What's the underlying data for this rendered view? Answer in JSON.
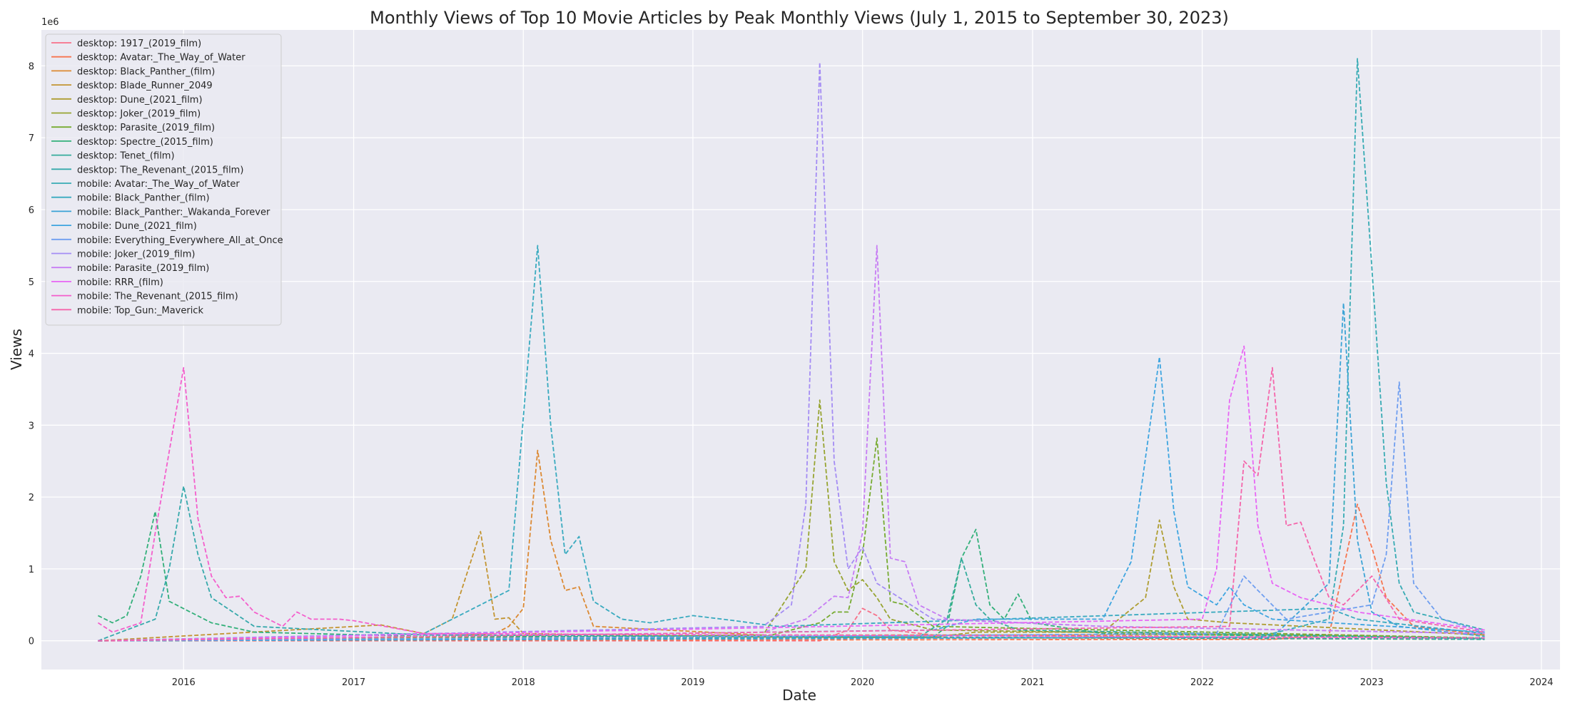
{
  "chart_data": {
    "type": "line",
    "title": "Monthly Views of Top 10 Movie Articles by Peak Monthly Views (July 1, 2015 to September 30, 2023)",
    "xlabel": "Date",
    "ylabel": "Views",
    "y_offset_text": "1e6",
    "x_range": [
      "2015-03-01",
      "2024-02-10"
    ],
    "y_range": [
      -0.4,
      8.5
    ],
    "x_ticks": [
      "2016",
      "2017",
      "2018",
      "2019",
      "2020",
      "2021",
      "2022",
      "2023",
      "2024"
    ],
    "y_ticks": [
      "0",
      "1",
      "2",
      "3",
      "4",
      "5",
      "6",
      "7",
      "8"
    ],
    "grid": true,
    "legend_position": "upper-left",
    "line_style": "dashed",
    "series": [
      {
        "name": "desktop: 1917_(2019_film)",
        "color": "#f77189",
        "points": [
          [
            "2015-07-01",
            0
          ],
          [
            "2019-10-01",
            0
          ],
          [
            "2019-12-01",
            0.15
          ],
          [
            "2020-01-01",
            0.45
          ],
          [
            "2020-02-01",
            0.35
          ],
          [
            "2020-03-01",
            0.15
          ],
          [
            "2020-06-01",
            0.08
          ],
          [
            "2023-09-01",
            0.02
          ]
        ]
      },
      {
        "name": "desktop: Avatar:_The_Way_of_Water",
        "color": "#f7754f",
        "points": [
          [
            "2015-07-01",
            0
          ],
          [
            "2022-06-01",
            0.02
          ],
          [
            "2022-10-01",
            0.08
          ],
          [
            "2022-12-01",
            1.9
          ],
          [
            "2023-01-01",
            1.3
          ],
          [
            "2023-02-01",
            0.6
          ],
          [
            "2023-04-01",
            0.2
          ],
          [
            "2023-09-01",
            0.08
          ]
        ]
      },
      {
        "name": "desktop: Black_Panther_(film)",
        "color": "#dc8932",
        "points": [
          [
            "2015-07-01",
            0
          ],
          [
            "2017-06-01",
            0.05
          ],
          [
            "2017-11-01",
            0.1
          ],
          [
            "2017-12-01",
            0.2
          ],
          [
            "2018-01-01",
            0.45
          ],
          [
            "2018-02-01",
            2.65
          ],
          [
            "2018-03-01",
            1.4
          ],
          [
            "2018-04-01",
            0.7
          ],
          [
            "2018-05-01",
            0.75
          ],
          [
            "2018-06-01",
            0.2
          ],
          [
            "2019-06-01",
            0.08
          ],
          [
            "2022-11-01",
            0.08
          ],
          [
            "2023-09-01",
            0.03
          ]
        ]
      },
      {
        "name": "desktop: Blade_Runner_2049",
        "color": "#c39532",
        "points": [
          [
            "2015-07-01",
            0
          ],
          [
            "2017-03-01",
            0.22
          ],
          [
            "2017-06-01",
            0.1
          ],
          [
            "2017-08-01",
            0.3
          ],
          [
            "2017-10-01",
            1.52
          ],
          [
            "2017-11-01",
            0.3
          ],
          [
            "2017-12-01",
            0.32
          ],
          [
            "2018-01-01",
            0.1
          ],
          [
            "2019-06-01",
            0.05
          ],
          [
            "2023-09-01",
            0.02
          ]
        ]
      },
      {
        "name": "desktop: Dune_(2021_film)",
        "color": "#ae9d31",
        "points": [
          [
            "2015-07-01",
            0
          ],
          [
            "2020-06-01",
            0.05
          ],
          [
            "2020-09-01",
            0.12
          ],
          [
            "2021-06-01",
            0.12
          ],
          [
            "2021-09-01",
            0.6
          ],
          [
            "2021-10-01",
            1.68
          ],
          [
            "2021-11-01",
            0.75
          ],
          [
            "2021-12-01",
            0.3
          ],
          [
            "2022-03-01",
            0.25
          ],
          [
            "2023-09-01",
            0.08
          ]
        ]
      },
      {
        "name": "desktop: Joker_(2019_film)",
        "color": "#97a431",
        "points": [
          [
            "2015-07-01",
            0
          ],
          [
            "2019-06-01",
            0.08
          ],
          [
            "2019-09-01",
            1
          ],
          [
            "2019-10-01",
            3.35
          ],
          [
            "2019-11-01",
            1.1
          ],
          [
            "2019-12-01",
            0.7
          ],
          [
            "2020-01-01",
            0.85
          ],
          [
            "2020-02-01",
            0.6
          ],
          [
            "2020-03-01",
            0.3
          ],
          [
            "2020-06-01",
            0.15
          ],
          [
            "2023-09-01",
            0.04
          ]
        ]
      },
      {
        "name": "desktop: Parasite_(2019_film)",
        "color": "#77ab31",
        "points": [
          [
            "2015-07-01",
            0
          ],
          [
            "2019-06-01",
            0.05
          ],
          [
            "2019-10-01",
            0.25
          ],
          [
            "2019-11-01",
            0.4
          ],
          [
            "2019-12-01",
            0.4
          ],
          [
            "2020-01-01",
            1.2
          ],
          [
            "2020-02-01",
            2.82
          ],
          [
            "2020-03-01",
            0.55
          ],
          [
            "2020-04-01",
            0.5
          ],
          [
            "2020-06-01",
            0.2
          ],
          [
            "2023-09-01",
            0.04
          ]
        ]
      },
      {
        "name": "desktop: Spectre_(2015_film)",
        "color": "#33b07a",
        "points": [
          [
            "2015-07-01",
            0.35
          ],
          [
            "2015-08-01",
            0.25
          ],
          [
            "2015-09-01",
            0.35
          ],
          [
            "2015-10-01",
            0.9
          ],
          [
            "2015-11-01",
            1.8
          ],
          [
            "2015-12-01",
            0.55
          ],
          [
            "2016-03-01",
            0.25
          ],
          [
            "2016-06-01",
            0.12
          ],
          [
            "2017-06-01",
            0.06
          ],
          [
            "2020-06-01",
            0.05
          ],
          [
            "2020-07-01",
            0.2
          ],
          [
            "2020-08-01",
            1.15
          ],
          [
            "2020-09-01",
            1.55
          ],
          [
            "2020-10-01",
            0.5
          ],
          [
            "2020-11-01",
            0.3
          ],
          [
            "2020-12-01",
            0.65
          ],
          [
            "2021-01-01",
            0.25
          ],
          [
            "2021-06-01",
            0.1
          ],
          [
            "2023-09-01",
            0.03
          ]
        ]
      },
      {
        "name": "desktop: Tenet_(film)",
        "color": "#35ac9c",
        "points": [
          [
            "2015-07-01",
            0
          ],
          [
            "2020-05-01",
            0.05
          ],
          [
            "2020-07-01",
            0.3
          ],
          [
            "2020-08-01",
            1.15
          ],
          [
            "2020-09-01",
            0.5
          ],
          [
            "2020-10-01",
            0.3
          ],
          [
            "2020-12-01",
            0.15
          ],
          [
            "2023-09-01",
            0.03
          ]
        ]
      },
      {
        "name": "desktop: The_Revenant_(2015_film)",
        "color": "#36a9ab",
        "points": [
          [
            "2015-07-01",
            0
          ],
          [
            "2015-11-01",
            0.3
          ],
          [
            "2015-12-01",
            1
          ],
          [
            "2016-01-01",
            2.15
          ],
          [
            "2016-02-01",
            1.2
          ],
          [
            "2016-03-01",
            0.6
          ],
          [
            "2016-06-01",
            0.2
          ],
          [
            "2017-06-01",
            0.08
          ],
          [
            "2023-09-01",
            0.02
          ]
        ]
      },
      {
        "name": "mobile: Avatar:_The_Way_of_Water",
        "color": "#37abb4",
        "points": [
          [
            "2015-07-01",
            0
          ],
          [
            "2022-05-01",
            0.05
          ],
          [
            "2022-10-01",
            0.3
          ],
          [
            "2022-11-01",
            1.6
          ],
          [
            "2022-12-01",
            8.1
          ],
          [
            "2023-01-01",
            5.2
          ],
          [
            "2023-02-01",
            2.2
          ],
          [
            "2023-03-01",
            0.8
          ],
          [
            "2023-04-01",
            0.4
          ],
          [
            "2023-06-01",
            0.3
          ],
          [
            "2023-09-01",
            0.15
          ]
        ]
      },
      {
        "name": "mobile: Black_Panther_(film)",
        "color": "#38aabf",
        "points": [
          [
            "2015-07-01",
            0
          ],
          [
            "2017-06-01",
            0.1
          ],
          [
            "2017-12-01",
            0.7
          ],
          [
            "2018-02-01",
            5.5
          ],
          [
            "2018-03-01",
            3
          ],
          [
            "2018-04-01",
            1.2
          ],
          [
            "2018-05-01",
            1.45
          ],
          [
            "2018-06-01",
            0.55
          ],
          [
            "2018-08-01",
            0.3
          ],
          [
            "2018-10-01",
            0.25
          ],
          [
            "2019-01-01",
            0.35
          ],
          [
            "2019-04-01",
            0.28
          ],
          [
            "2019-07-01",
            0.2
          ],
          [
            "2022-10-01",
            0.45
          ],
          [
            "2022-12-01",
            0.3
          ],
          [
            "2023-09-01",
            0.1
          ]
        ]
      },
      {
        "name": "mobile: Black_Panther:_Wakanda_Forever",
        "color": "#3ba3d6",
        "points": [
          [
            "2015-07-01",
            0
          ],
          [
            "2022-06-01",
            0.05
          ],
          [
            "2022-10-01",
            0.8
          ],
          [
            "2022-11-01",
            4.7
          ],
          [
            "2022-12-01",
            1.4
          ],
          [
            "2023-01-01",
            0.4
          ],
          [
            "2023-03-01",
            0.2
          ],
          [
            "2023-09-01",
            0.06
          ]
        ]
      },
      {
        "name": "mobile: Dune_(2021_film)",
        "color": "#3ea5e0",
        "points": [
          [
            "2015-07-01",
            0
          ],
          [
            "2020-06-01",
            0.15
          ],
          [
            "2020-09-01",
            0.3
          ],
          [
            "2021-06-01",
            0.3
          ],
          [
            "2021-08-01",
            1.1
          ],
          [
            "2021-10-01",
            3.95
          ],
          [
            "2021-11-01",
            1.8
          ],
          [
            "2021-12-01",
            0.75
          ],
          [
            "2022-02-01",
            0.5
          ],
          [
            "2022-03-01",
            0.75
          ],
          [
            "2022-04-01",
            0.5
          ],
          [
            "2022-06-01",
            0.3
          ],
          [
            "2023-09-01",
            0.12
          ]
        ]
      },
      {
        "name": "mobile: Everything_Everywhere_All_at_Once",
        "color": "#6f9ef0",
        "points": [
          [
            "2015-07-01",
            0
          ],
          [
            "2022-02-01",
            0.1
          ],
          [
            "2022-04-01",
            0.9
          ],
          [
            "2022-05-01",
            0.7
          ],
          [
            "2022-07-01",
            0.3
          ],
          [
            "2023-01-01",
            0.5
          ],
          [
            "2023-02-01",
            1.2
          ],
          [
            "2023-03-01",
            3.6
          ],
          [
            "2023-04-01",
            0.8
          ],
          [
            "2023-06-01",
            0.3
          ],
          [
            "2023-09-01",
            0.12
          ]
        ]
      },
      {
        "name": "mobile: Joker_(2019_film)",
        "color": "#a48cf4",
        "points": [
          [
            "2015-07-01",
            0
          ],
          [
            "2019-06-01",
            0.2
          ],
          [
            "2019-08-01",
            0.5
          ],
          [
            "2019-09-01",
            1.9
          ],
          [
            "2019-10-01",
            8.05
          ],
          [
            "2019-11-01",
            2.5
          ],
          [
            "2019-12-01",
            1
          ],
          [
            "2020-01-01",
            1.3
          ],
          [
            "2020-02-01",
            0.8
          ],
          [
            "2020-06-01",
            0.3
          ],
          [
            "2021-06-01",
            0.2
          ],
          [
            "2023-09-01",
            0.1
          ]
        ]
      },
      {
        "name": "mobile: Parasite_(2019_film)",
        "color": "#c77cf4",
        "points": [
          [
            "2015-07-01",
            0
          ],
          [
            "2019-06-01",
            0.12
          ],
          [
            "2019-09-01",
            0.3
          ],
          [
            "2019-11-01",
            0.62
          ],
          [
            "2019-12-01",
            0.6
          ],
          [
            "2020-01-01",
            1.5
          ],
          [
            "2020-02-01",
            5.5
          ],
          [
            "2020-03-01",
            1.15
          ],
          [
            "2020-04-01",
            1.1
          ],
          [
            "2020-05-01",
            0.5
          ],
          [
            "2020-07-01",
            0.3
          ],
          [
            "2021-06-01",
            0.2
          ],
          [
            "2023-09-01",
            0.1
          ]
        ]
      },
      {
        "name": "mobile: RRR_(film)",
        "color": "#e866f4",
        "points": [
          [
            "2015-07-01",
            0
          ],
          [
            "2022-01-01",
            0.3
          ],
          [
            "2022-02-01",
            1
          ],
          [
            "2022-03-01",
            3.35
          ],
          [
            "2022-04-01",
            4.1
          ],
          [
            "2022-05-01",
            1.6
          ],
          [
            "2022-06-01",
            0.8
          ],
          [
            "2022-08-01",
            0.6
          ],
          [
            "2022-10-01",
            0.5
          ],
          [
            "2022-12-01",
            0.4
          ],
          [
            "2023-09-01",
            0.15
          ]
        ]
      },
      {
        "name": "mobile: The_Revenant_(2015_film)",
        "color": "#f45fcc",
        "points": [
          [
            "2015-07-01",
            0.25
          ],
          [
            "2015-08-01",
            0.12
          ],
          [
            "2015-10-01",
            0.25
          ],
          [
            "2015-11-01",
            1.5
          ],
          [
            "2016-01-01",
            3.8
          ],
          [
            "2016-02-01",
            1.7
          ],
          [
            "2016-03-01",
            0.9
          ],
          [
            "2016-04-01",
            0.6
          ],
          [
            "2016-05-01",
            0.62
          ],
          [
            "2016-06-01",
            0.4
          ],
          [
            "2016-08-01",
            0.2
          ],
          [
            "2016-09-01",
            0.4
          ],
          [
            "2016-10-01",
            0.3
          ],
          [
            "2016-12-01",
            0.3
          ],
          [
            "2017-01-01",
            0.28
          ],
          [
            "2017-06-01",
            0.1
          ],
          [
            "2019-06-01",
            0.08
          ],
          [
            "2023-09-01",
            0.04
          ]
        ]
      },
      {
        "name": "mobile: Top_Gun:_Maverick",
        "color": "#f565ab",
        "points": [
          [
            "2015-07-01",
            0
          ],
          [
            "2022-03-01",
            0.2
          ],
          [
            "2022-04-01",
            2.5
          ],
          [
            "2022-05-01",
            2.3
          ],
          [
            "2022-06-01",
            3.8
          ],
          [
            "2022-07-01",
            1.6
          ],
          [
            "2022-08-01",
            1.65
          ],
          [
            "2022-09-01",
            1.1
          ],
          [
            "2022-10-01",
            0.6
          ],
          [
            "2022-11-01",
            0.5
          ],
          [
            "2023-01-01",
            0.9
          ],
          [
            "2023-03-01",
            0.3
          ],
          [
            "2023-09-01",
            0.12
          ]
        ]
      }
    ]
  }
}
